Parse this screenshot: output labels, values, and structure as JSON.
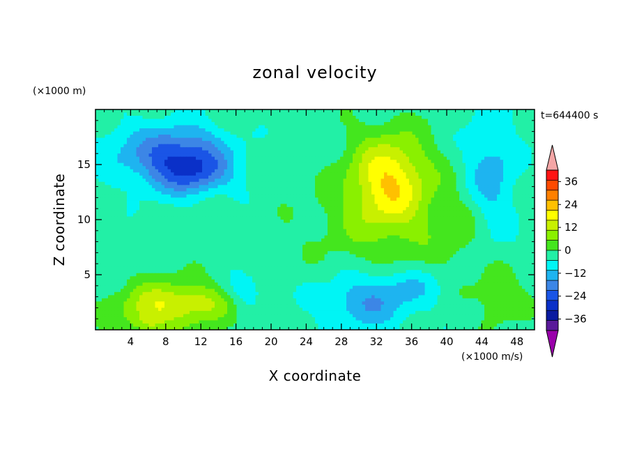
{
  "chart_data": {
    "type": "heatmap",
    "title": "zonal velocity",
    "xlabel": "X coordinate",
    "ylabel": "Z coordinate",
    "x_unit": "(×1000 m/s)",
    "y_unit": "(×1000 m)",
    "time_label": "t=644400 s",
    "xlim": [
      0,
      50
    ],
    "ylim": [
      0,
      20
    ],
    "xticks": [
      4,
      8,
      12,
      16,
      20,
      24,
      28,
      32,
      36,
      40,
      44,
      48
    ],
    "yticks": [
      5,
      10,
      15
    ],
    "colorbar": {
      "levels": [
        -36,
        -24,
        -12,
        0,
        12,
        24,
        36
      ],
      "bounds": [
        -42,
        -36,
        -30,
        -24,
        -18,
        -12,
        -6,
        0,
        6,
        12,
        18,
        24,
        30,
        36,
        42
      ],
      "colors": [
        "#5a1a9a",
        "#0a1aa0",
        "#0a30c8",
        "#1a55e6",
        "#3c86e6",
        "#1eb4f0",
        "#00f5f5",
        "#22f0a6",
        "#44e61e",
        "#8af000",
        "#c8f000",
        "#ffff00",
        "#ffc000",
        "#ff8000",
        "#ff4a00",
        "#ff1414"
      ],
      "under_color": "#9900aa",
      "over_color": "#f4a6a6"
    },
    "field_features": [
      {
        "x": 9.5,
        "z": 15.5,
        "sx": 5.5,
        "sz": 2.8,
        "amp": -28
      },
      {
        "x": 12.0,
        "z": 14.0,
        "sx": 3.5,
        "sz": 1.6,
        "amp": -8
      },
      {
        "x": 33.5,
        "z": 13.8,
        "sx": 4.5,
        "sz": 4.0,
        "amp": 25
      },
      {
        "x": 33.0,
        "z": 9.5,
        "sx": 8.0,
        "sz": 4.0,
        "amp": 8
      },
      {
        "x": 31.0,
        "z": 2.5,
        "sx": 5.5,
        "sz": 2.5,
        "amp": -14
      },
      {
        "x": 36.0,
        "z": 4.0,
        "sx": 4.0,
        "sz": 1.6,
        "amp": -6
      },
      {
        "x": 8.0,
        "z": 2.2,
        "sx": 5.5,
        "sz": 2.2,
        "amp": 20
      },
      {
        "x": 13.0,
        "z": 2.5,
        "sx": 3.0,
        "sz": 1.5,
        "amp": 7
      },
      {
        "x": 5.8,
        "z": 0.5,
        "sx": 1.8,
        "sz": 1.0,
        "amp": 8
      },
      {
        "x": 17.0,
        "z": 3.5,
        "sx": 2.0,
        "sz": 1.5,
        "amp": -8
      },
      {
        "x": 46.0,
        "z": 3.0,
        "sx": 3.0,
        "sz": 2.5,
        "amp": 8
      },
      {
        "x": 45.0,
        "z": 14.0,
        "sx": 3.0,
        "sz": 6.0,
        "amp": -12
      },
      {
        "x": 2.0,
        "z": 17.0,
        "sx": 3.0,
        "sz": 3.0,
        "amp": -4
      },
      {
        "x": 42.0,
        "z": 9.0,
        "sx": 3.0,
        "sz": 4.0,
        "amp": 5
      }
    ]
  }
}
